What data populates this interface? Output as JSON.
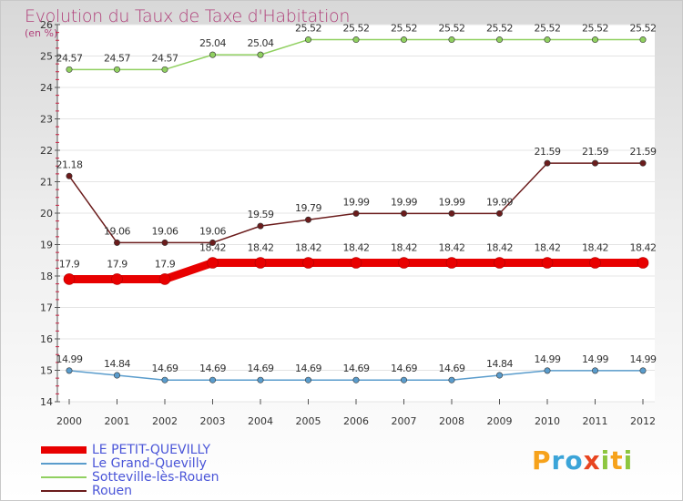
{
  "title": "Evolution du Taux de Taxe d'Habitation",
  "subtitle": "(en %)",
  "logo": {
    "letters": [
      "P",
      "r",
      "o",
      "x",
      "i",
      "t",
      "i"
    ],
    "colors": [
      "#f6a21b",
      "#3ba4d8",
      "#3ba4d8",
      "#e8441f",
      "#8dc63f",
      "#f6a21b",
      "#8dc63f"
    ]
  },
  "chart_data": {
    "type": "line",
    "x": [
      "2000",
      "2001",
      "2002",
      "2003",
      "2004",
      "2005",
      "2006",
      "2007",
      "2008",
      "2009",
      "2010",
      "2011",
      "2012"
    ],
    "ylim": [
      14,
      26
    ],
    "yticks": [
      "14",
      "15",
      "16",
      "17",
      "18",
      "19",
      "20",
      "21",
      "22",
      "23",
      "24",
      "25",
      "26"
    ],
    "series": [
      {
        "name": "LE PETIT-QUEVILLY",
        "color": "#e80000",
        "emphasis": true,
        "values": [
          17.9,
          17.9,
          17.9,
          18.42,
          18.42,
          18.42,
          18.42,
          18.42,
          18.42,
          18.42,
          18.42,
          18.42,
          18.42
        ],
        "labels": [
          "17.9",
          "17.9",
          "17.9",
          "18.42",
          "18.42",
          "18.42",
          "18.42",
          "18.42",
          "18.42",
          "18.42",
          "18.42",
          "18.42",
          "18.42"
        ]
      },
      {
        "name": "Le Grand-Quevilly",
        "color": "#5a9ccc",
        "values": [
          14.99,
          14.84,
          14.69,
          14.69,
          14.69,
          14.69,
          14.69,
          14.69,
          14.69,
          14.84,
          14.99,
          14.99,
          14.99
        ],
        "labels": [
          "14.99",
          "14.84",
          "14.69",
          "14.69",
          "14.69",
          "14.69",
          "14.69",
          "14.69",
          "14.69",
          "14.84",
          "14.99",
          "14.99",
          "14.99"
        ]
      },
      {
        "name": "Sotteville-lès-Rouen",
        "color": "#90d060",
        "values": [
          24.57,
          24.57,
          24.57,
          25.04,
          25.04,
          25.52,
          25.52,
          25.52,
          25.52,
          25.52,
          25.52,
          25.52,
          25.52
        ],
        "labels": [
          "24.57",
          "24.57",
          "24.57",
          "25.04",
          "25.04",
          "25.52",
          "25.52",
          "25.52",
          "25.52",
          "25.52",
          "25.52",
          "25.52",
          "25.52"
        ]
      },
      {
        "name": "Rouen",
        "color": "#6b1c1c",
        "values": [
          21.18,
          19.06,
          19.06,
          19.06,
          19.59,
          19.79,
          19.99,
          19.99,
          19.99,
          19.99,
          21.59,
          21.59,
          21.59
        ],
        "labels": [
          "21.18",
          "19.06",
          "19.06",
          "19.06",
          "19.59",
          "19.79",
          "19.99",
          "19.99",
          "19.99",
          "19.99",
          "21.59",
          "21.59",
          "21.59"
        ]
      }
    ]
  }
}
